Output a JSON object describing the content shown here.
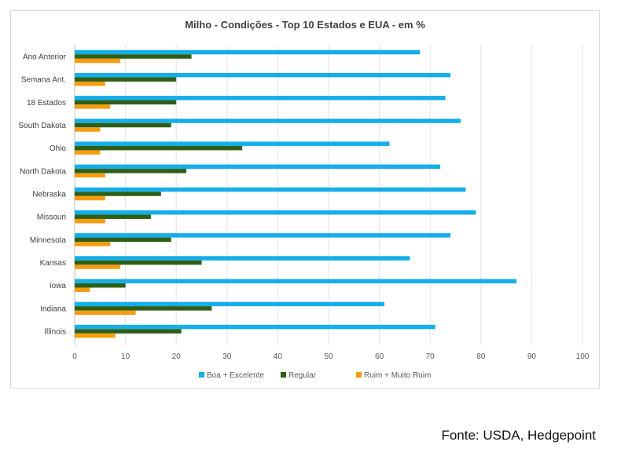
{
  "chart_data": {
    "type": "bar",
    "orientation": "horizontal",
    "title": "Milho - Condições - Top 10 Estados e EUA - em %",
    "categories": [
      "Ano Anterior",
      "Semana Ant.",
      "18 Estados",
      "South Dakota",
      "Ohio",
      "North Dakota",
      "Nebraska",
      "Missouri",
      "Minnesota",
      "Kansas",
      "Iowa",
      "Indiana",
      "Illinois"
    ],
    "series": [
      {
        "name": "Boa + Excelente",
        "color": "#15aee8",
        "values": [
          68,
          74,
          73,
          76,
          62,
          72,
          77,
          79,
          74,
          66,
          87,
          61,
          71
        ]
      },
      {
        "name": "Regular",
        "color": "#2f5f16",
        "values": [
          23,
          20,
          20,
          19,
          33,
          22,
          17,
          15,
          19,
          25,
          10,
          27,
          21
        ]
      },
      {
        "name": "Ruim + Muito Ruim",
        "color": "#f59c10",
        "values": [
          9,
          6,
          7,
          5,
          5,
          6,
          6,
          6,
          7,
          9,
          3,
          12,
          8
        ]
      }
    ],
    "xlim": [
      0,
      100
    ],
    "xticks": [
      0,
      10,
      20,
      30,
      40,
      50,
      60,
      70,
      80,
      90,
      100
    ],
    "grid": "vertical",
    "legend": "bottom",
    "xlabel": "",
    "ylabel": ""
  },
  "source": "Fonte: USDA, Hedgepoint"
}
